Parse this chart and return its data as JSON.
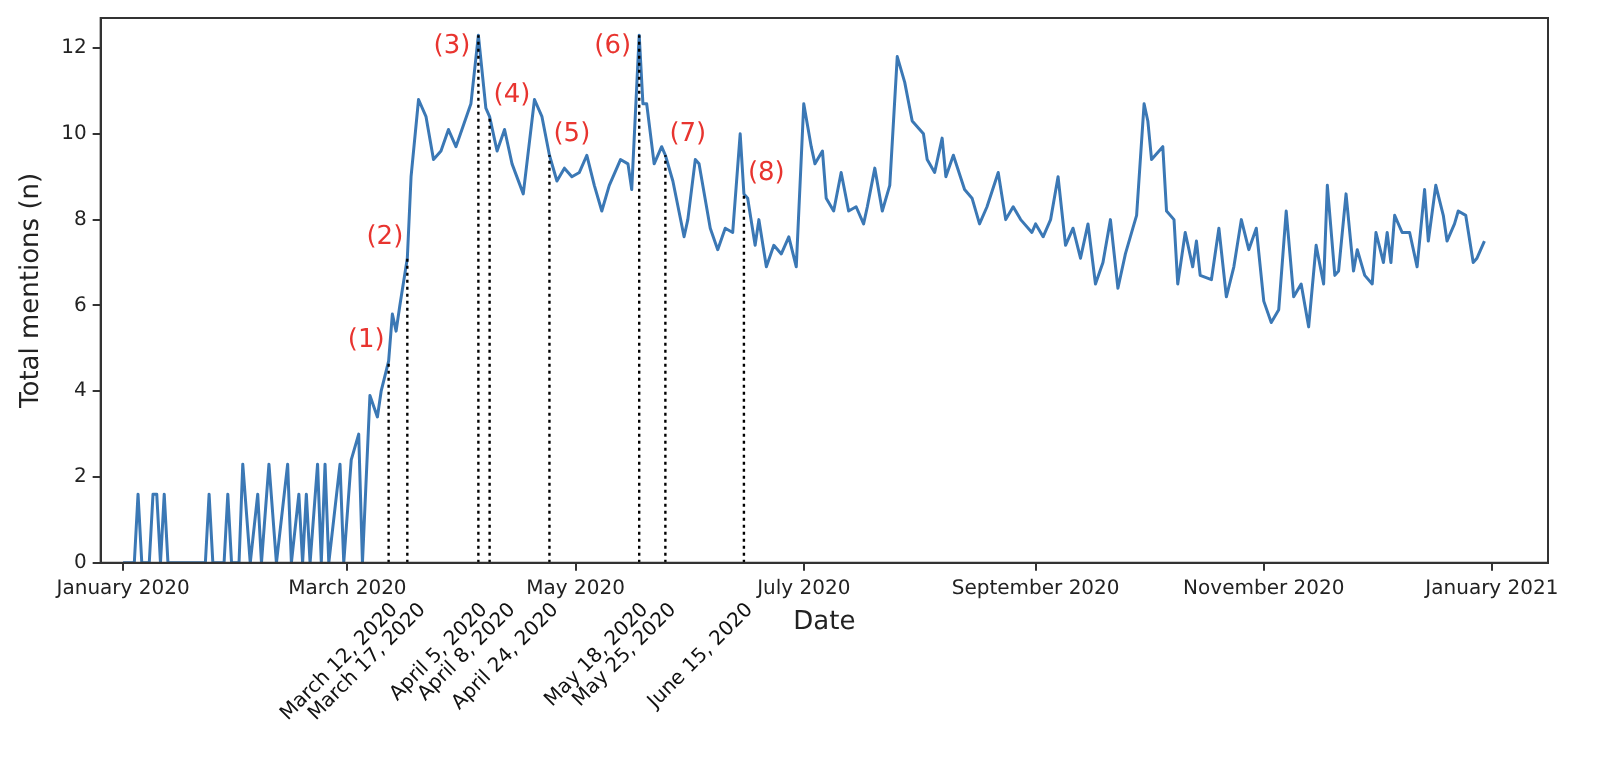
{
  "chart_data": {
    "type": "line",
    "xlabel": "Date",
    "ylabel": "Total mentions (n)",
    "xlim": [
      "2019-12-26",
      "2021-01-16"
    ],
    "xticks": [
      {
        "value": "2020-01-01",
        "label": "January 2020"
      },
      {
        "value": "2020-03-01",
        "label": "March 2020"
      },
      {
        "value": "2020-05-01",
        "label": "May 2020"
      },
      {
        "value": "2020-07-01",
        "label": "July 2020"
      },
      {
        "value": "2020-09-01",
        "label": "September 2020"
      },
      {
        "value": "2020-11-01",
        "label": "November 2020"
      },
      {
        "value": "2021-01-01",
        "label": "January 2021"
      }
    ],
    "ylim": [
      0,
      12.7
    ],
    "yticks": [
      0,
      2,
      4,
      6,
      8,
      10,
      12
    ],
    "grid": false,
    "legend": false,
    "marker": "none",
    "line_style": "solid",
    "x": [
      "2020-01-01",
      "2020-01-04",
      "2020-01-05",
      "2020-01-06",
      "2020-01-08",
      "2020-01-09",
      "2020-01-10",
      "2020-01-11",
      "2020-01-12",
      "2020-01-13",
      "2020-01-23",
      "2020-01-24",
      "2020-01-25",
      "2020-01-28",
      "2020-01-29",
      "2020-01-30",
      "2020-02-01",
      "2020-02-02",
      "2020-02-04",
      "2020-02-06",
      "2020-02-07",
      "2020-02-09",
      "2020-02-11",
      "2020-02-14",
      "2020-02-15",
      "2020-02-17",
      "2020-02-18",
      "2020-02-19",
      "2020-02-20",
      "2020-02-22",
      "2020-02-23",
      "2020-02-24",
      "2020-02-25",
      "2020-02-28",
      "2020-02-29",
      "2020-03-02",
      "2020-03-04",
      "2020-03-05",
      "2020-03-07",
      "2020-03-09",
      "2020-03-10",
      "2020-03-12",
      "2020-03-13",
      "2020-03-14",
      "2020-03-15",
      "2020-03-17",
      "2020-03-18",
      "2020-03-20",
      "2020-03-22",
      "2020-03-24",
      "2020-03-26",
      "2020-03-28",
      "2020-03-30",
      "2020-04-01",
      "2020-04-03",
      "2020-04-05",
      "2020-04-07",
      "2020-04-08",
      "2020-04-10",
      "2020-04-12",
      "2020-04-14",
      "2020-04-17",
      "2020-04-20",
      "2020-04-22",
      "2020-04-24",
      "2020-04-26",
      "2020-04-28",
      "2020-04-30",
      "2020-05-02",
      "2020-05-04",
      "2020-05-06",
      "2020-05-08",
      "2020-05-10",
      "2020-05-13",
      "2020-05-15",
      "2020-05-16",
      "2020-05-18",
      "2020-05-19",
      "2020-05-20",
      "2020-05-22",
      "2020-05-24",
      "2020-05-25",
      "2020-05-27",
      "2020-05-30",
      "2020-05-31",
      "2020-06-02",
      "2020-06-03",
      "2020-06-06",
      "2020-06-08",
      "2020-06-10",
      "2020-06-12",
      "2020-06-14",
      "2020-06-15",
      "2020-06-16",
      "2020-06-18",
      "2020-06-19",
      "2020-06-21",
      "2020-06-23",
      "2020-06-25",
      "2020-06-27",
      "2020-06-29",
      "2020-07-01",
      "2020-07-03",
      "2020-07-04",
      "2020-07-06",
      "2020-07-07",
      "2020-07-09",
      "2020-07-11",
      "2020-07-13",
      "2020-07-15",
      "2020-07-17",
      "2020-07-18",
      "2020-07-20",
      "2020-07-22",
      "2020-07-24",
      "2020-07-26",
      "2020-07-28",
      "2020-07-30",
      "2020-08-02",
      "2020-08-03",
      "2020-08-05",
      "2020-08-07",
      "2020-08-08",
      "2020-08-10",
      "2020-08-13",
      "2020-08-15",
      "2020-08-17",
      "2020-08-19",
      "2020-08-22",
      "2020-08-24",
      "2020-08-26",
      "2020-08-28",
      "2020-08-31",
      "2020-09-01",
      "2020-09-03",
      "2020-09-05",
      "2020-09-07",
      "2020-09-09",
      "2020-09-11",
      "2020-09-13",
      "2020-09-15",
      "2020-09-17",
      "2020-09-19",
      "2020-09-21",
      "2020-09-23",
      "2020-09-25",
      "2020-09-27",
      "2020-09-28",
      "2020-09-30",
      "2020-10-01",
      "2020-10-02",
      "2020-10-05",
      "2020-10-06",
      "2020-10-08",
      "2020-10-09",
      "2020-10-11",
      "2020-10-13",
      "2020-10-14",
      "2020-10-15",
      "2020-10-18",
      "2020-10-20",
      "2020-10-22",
      "2020-10-24",
      "2020-10-26",
      "2020-10-28",
      "2020-10-30",
      "2020-11-01",
      "2020-11-03",
      "2020-11-05",
      "2020-11-07",
      "2020-11-09",
      "2020-11-11",
      "2020-11-13",
      "2020-11-15",
      "2020-11-17",
      "2020-11-18",
      "2020-11-20",
      "2020-11-21",
      "2020-11-23",
      "2020-11-25",
      "2020-11-26",
      "2020-11-28",
      "2020-11-30",
      "2020-12-01",
      "2020-12-03",
      "2020-12-04",
      "2020-12-05",
      "2020-12-06",
      "2020-12-08",
      "2020-12-10",
      "2020-12-12",
      "2020-12-14",
      "2020-12-15",
      "2020-12-17",
      "2020-12-19",
      "2020-12-20",
      "2020-12-22",
      "2020-12-23",
      "2020-12-25",
      "2020-12-27",
      "2020-12-28",
      "2020-12-30"
    ],
    "series": [
      {
        "color": "#3b78b5",
        "values": [
          0,
          0,
          1.6,
          0,
          0,
          1.6,
          1.6,
          0,
          1.6,
          0,
          0,
          1.6,
          0,
          0,
          1.6,
          0,
          0,
          2.3,
          0,
          1.6,
          0,
          2.3,
          0,
          2.3,
          0,
          1.6,
          0,
          1.6,
          0,
          2.3,
          0,
          2.3,
          0,
          2.3,
          0,
          2.4,
          3.0,
          0,
          3.9,
          3.4,
          4.0,
          4.7,
          5.8,
          5.4,
          6.0,
          7.1,
          9.0,
          10.8,
          10.4,
          9.4,
          9.6,
          10.1,
          9.7,
          10.2,
          10.7,
          12.3,
          10.6,
          10.4,
          9.6,
          10.1,
          9.3,
          8.6,
          10.8,
          10.4,
          9.5,
          8.9,
          9.2,
          9.0,
          9.1,
          9.5,
          8.8,
          8.2,
          8.8,
          9.4,
          9.3,
          8.7,
          12.3,
          10.7,
          10.7,
          9.3,
          9.7,
          9.5,
          8.9,
          7.6,
          8.0,
          9.4,
          9.3,
          7.8,
          7.3,
          7.8,
          7.7,
          10.0,
          8.6,
          8.5,
          7.4,
          8.0,
          6.9,
          7.4,
          7.2,
          7.6,
          6.9,
          10.7,
          9.7,
          9.3,
          9.6,
          8.5,
          8.2,
          9.1,
          8.2,
          8.3,
          7.9,
          8.3,
          9.2,
          8.2,
          8.8,
          11.8,
          11.2,
          10.3,
          10.0,
          9.4,
          9.1,
          9.9,
          9.0,
          9.5,
          8.7,
          8.5,
          7.9,
          8.3,
          9.1,
          8.0,
          8.3,
          8.0,
          7.7,
          7.9,
          7.6,
          8.0,
          9.0,
          7.4,
          7.8,
          7.1,
          7.9,
          6.5,
          7.0,
          8.0,
          6.4,
          7.2,
          7.8,
          8.1,
          10.7,
          10.3,
          9.4,
          9.7,
          8.2,
          8.0,
          6.5,
          7.7,
          6.9,
          7.5,
          6.7,
          6.6,
          7.8,
          6.2,
          6.9,
          8.0,
          7.3,
          7.8,
          6.1,
          5.6,
          5.9,
          8.2,
          6.2,
          6.5,
          5.5,
          7.4,
          6.5,
          8.8,
          6.7,
          6.8,
          8.6,
          6.8,
          7.3,
          6.7,
          6.5,
          7.7,
          7.0,
          7.7,
          7.0,
          8.1,
          7.7,
          7.7,
          6.9,
          8.7,
          7.5,
          8.8,
          8.1,
          7.5,
          7.9,
          8.2,
          8.1,
          7.0,
          7.1,
          7.5
        ]
      }
    ],
    "ref_lines": [
      {
        "axis": "x",
        "value": "2020-03-12",
        "label": "March 12, 2020",
        "color": "#000000",
        "line_style": "dotted"
      },
      {
        "axis": "x",
        "value": "2020-03-17",
        "label": "March 17, 2020",
        "color": "#000000",
        "line_style": "dotted"
      },
      {
        "axis": "x",
        "value": "2020-04-05",
        "label": "April 5, 2020",
        "color": "#000000",
        "line_style": "dotted"
      },
      {
        "axis": "x",
        "value": "2020-04-08",
        "label": "April 8, 2020",
        "color": "#000000",
        "line_style": "dotted"
      },
      {
        "axis": "x",
        "value": "2020-04-24",
        "label": "April 24, 2020",
        "color": "#000000",
        "line_style": "dotted"
      },
      {
        "axis": "x",
        "value": "2020-05-18",
        "label": "May 18, 2020",
        "color": "#000000",
        "line_style": "dotted"
      },
      {
        "axis": "x",
        "value": "2020-05-25",
        "label": "May 25, 2020",
        "color": "#000000",
        "line_style": "dotted"
      },
      {
        "axis": "x",
        "value": "2020-06-15",
        "label": "June 15, 2020",
        "color": "#000000",
        "line_style": "dotted"
      }
    ],
    "annotations": [
      {
        "text": "(1)",
        "x": "2020-03-12",
        "y": 4.7
      },
      {
        "text": "(2)",
        "x": "2020-03-17",
        "y": 7.1
      },
      {
        "text": "(3)",
        "x": "2020-04-05",
        "y": 12.3
      },
      {
        "text": "(4)",
        "x": "2020-04-08",
        "y": 10.4
      },
      {
        "text": "(5)",
        "x": "2020-04-24",
        "y": 9.5
      },
      {
        "text": "(6)",
        "x": "2020-05-18",
        "y": 12.3
      },
      {
        "text": "(7)",
        "x": "2020-05-25",
        "y": 9.5
      },
      {
        "text": "(8)",
        "x": "2020-06-15",
        "y": 8.6
      }
    ]
  }
}
